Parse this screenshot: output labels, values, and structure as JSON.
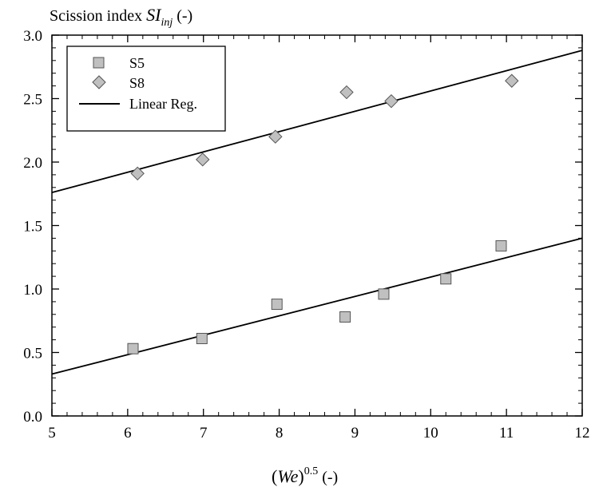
{
  "chart_data": {
    "type": "scatter",
    "ylabel": {
      "main": "Scission index ",
      "italic": "SI",
      "sub": "inj",
      "suffix": " (-)"
    },
    "xlabel": {
      "open": "(",
      "italic": "We",
      "close": ")",
      "sup": "0.5",
      "suffix": " (-)"
    },
    "xlim": [
      5,
      12
    ],
    "ylim": [
      0,
      3.0
    ],
    "x_ticks": [
      "5",
      "6",
      "7",
      "8",
      "9",
      "10",
      "11",
      "12"
    ],
    "y_ticks": [
      "0.0",
      "0.5",
      "1.0",
      "1.5",
      "2.0",
      "2.5",
      "3.0"
    ],
    "legend_position": "top-left",
    "series": [
      {
        "name": "S5",
        "marker": "square",
        "color": "#c0c0c0",
        "x": [
          6.07,
          6.98,
          7.97,
          8.87,
          9.38,
          10.2,
          10.93
        ],
        "y": [
          0.53,
          0.61,
          0.88,
          0.78,
          0.96,
          1.08,
          1.34
        ]
      },
      {
        "name": "S8",
        "marker": "diamond",
        "color": "#c0c0c0",
        "x": [
          6.13,
          6.99,
          7.95,
          8.89,
          9.48,
          11.07
        ],
        "y": [
          1.91,
          2.02,
          2.2,
          2.55,
          2.48,
          2.64
        ]
      }
    ],
    "regression": {
      "name": "Linear Reg.",
      "lines": [
        {
          "x": [
            5,
            12
          ],
          "y": [
            0.33,
            1.4
          ]
        },
        {
          "x": [
            5,
            12
          ],
          "y": [
            1.76,
            2.88
          ]
        }
      ]
    }
  }
}
